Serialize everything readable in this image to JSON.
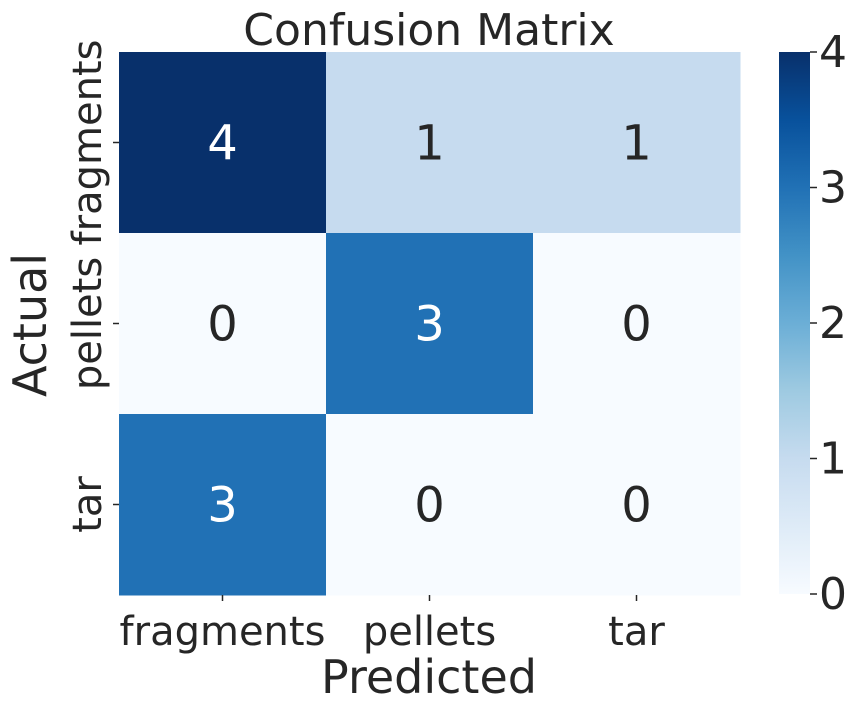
{
  "chart_data": {
    "type": "heatmap",
    "title": "Confusion Matrix",
    "xlabel": "Predicted",
    "ylabel": "Actual",
    "x_categories": [
      "fragments",
      "pellets",
      "tar"
    ],
    "y_categories": [
      "fragments",
      "pellets",
      "tar"
    ],
    "values": [
      [
        4,
        1,
        1
      ],
      [
        0,
        3,
        0
      ],
      [
        3,
        0,
        0
      ]
    ],
    "colorbar": {
      "min": 0,
      "max": 4,
      "ticks": [
        "0",
        "1",
        "2",
        "3",
        "4"
      ]
    },
    "colormap": "Blues",
    "colormap_stops": [
      "#f7fbff",
      "#deebf7",
      "#c6dbef",
      "#9ecae1",
      "#6baed6",
      "#4292c6",
      "#2171b5",
      "#08519c",
      "#08306b"
    ]
  }
}
